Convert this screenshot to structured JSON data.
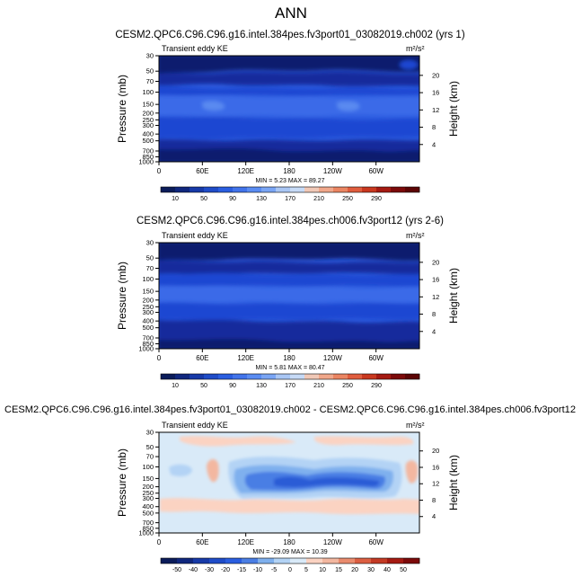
{
  "figure_title": "ANN",
  "colors": {
    "dark_navy": "#0a1a6e",
    "navy": "#142a9c",
    "mid_blue": "#1e46d2",
    "blue": "#2c5ce0",
    "light_blue": "#5a8af0",
    "diff_bg": "#d9eaf8",
    "diff_light": "#b3d3f5",
    "diff_pos": "#fbd3c2"
  },
  "chart_data": [
    {
      "type": "contour",
      "title": "CESM2.QPC6.C96.C96.g16.intel.384pes.fv3port01_03082019.ch002 (yrs 1)",
      "subtitle_left": "Transient eddy KE",
      "units": "m²/s²",
      "ylabel": "Pressure (mb)",
      "ylabel_right": "Height (km)",
      "x_ticks": [
        "0",
        "60E",
        "120E",
        "180",
        "120W",
        "60W"
      ],
      "y_ticks": [
        "30",
        "50",
        "70",
        "100",
        "150",
        "200",
        "250",
        "300",
        "400",
        "500",
        "700",
        "850",
        "1000"
      ],
      "y_ticks_right": [
        "20",
        "16",
        "12",
        "8",
        "4"
      ],
      "stats": "MIN =   5.23   MAX =  89.27",
      "colorbar_labels": [
        "10",
        "50",
        "90",
        "130",
        "170",
        "210",
        "250",
        "290"
      ]
    },
    {
      "type": "contour",
      "title": "CESM2.QPC6.C96.C96.g16.intel.384pes.ch006.fv3port12 (yrs 2-6)",
      "subtitle_left": "Transient eddy KE",
      "units": "m²/s²",
      "ylabel": "Pressure (mb)",
      "ylabel_right": "Height (km)",
      "x_ticks": [
        "0",
        "60E",
        "120E",
        "180",
        "120W",
        "60W"
      ],
      "y_ticks": [
        "30",
        "50",
        "70",
        "100",
        "150",
        "200",
        "250",
        "300",
        "400",
        "500",
        "700",
        "850",
        "1000"
      ],
      "y_ticks_right": [
        "20",
        "16",
        "12",
        "8",
        "4"
      ],
      "stats": "MIN =   5.81   MAX =  80.47",
      "colorbar_labels": [
        "10",
        "50",
        "90",
        "130",
        "170",
        "210",
        "250",
        "290"
      ]
    },
    {
      "type": "contour",
      "title": "CESM2.QPC6.C96.C96.g16.intel.384pes.fv3port01_03082019.ch002 - CESM2.QPC6.C96.C96.g16.intel.384pes.ch006.fv3port12",
      "subtitle_left": "Transient eddy KE",
      "units": "m²/s²",
      "ylabel": "Pressure (mb)",
      "ylabel_right": "Height (km)",
      "x_ticks": [
        "0",
        "60E",
        "120E",
        "180",
        "120W",
        "60W"
      ],
      "y_ticks": [
        "30",
        "50",
        "70",
        "100",
        "150",
        "200",
        "250",
        "300",
        "400",
        "500",
        "700",
        "850",
        "1000"
      ],
      "y_ticks_right": [
        "20",
        "16",
        "12",
        "8",
        "4"
      ],
      "stats": "MIN = -29.09   MAX =  10.39",
      "colorbar_labels": [
        "-50",
        "-40",
        "-30",
        "-20",
        "-15",
        "-10",
        "-5",
        "0",
        "5",
        "10",
        "15",
        "20",
        "30",
        "40",
        "50"
      ]
    }
  ]
}
